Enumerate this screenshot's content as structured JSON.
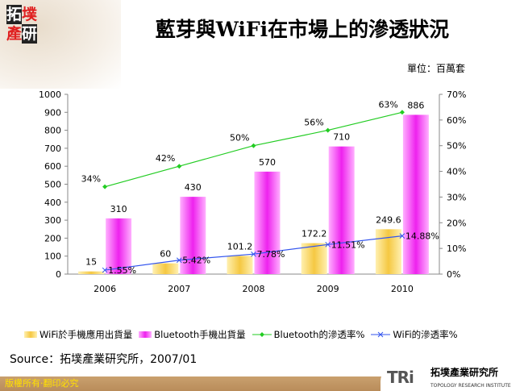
{
  "logo": {
    "chars": [
      "拓",
      "墣",
      "產",
      "研"
    ]
  },
  "title": "藍芽與WiFi在市場上的滲透狀況",
  "unit": "單位：百萬套",
  "chart_data": {
    "type": "bar+line",
    "categories": [
      "2006",
      "2007",
      "2008",
      "2009",
      "2010"
    ],
    "left_axis": {
      "range": [
        0,
        1000
      ],
      "ticks": [
        0,
        100,
        200,
        300,
        400,
        500,
        600,
        700,
        800,
        900,
        1000
      ]
    },
    "right_axis": {
      "range": [
        0,
        70
      ],
      "ticks": [
        "0%",
        "10%",
        "20%",
        "30%",
        "40%",
        "50%",
        "60%",
        "70%"
      ]
    },
    "series": [
      {
        "name": "WiFi於手機應用出貨量",
        "type": "bar",
        "axis": "left",
        "color": "#f5c842",
        "values": [
          15,
          60,
          101.2,
          172.2,
          249.6
        ],
        "labels": [
          "15",
          "60",
          "101.2",
          "172.2",
          "249.6"
        ]
      },
      {
        "name": "Bluetooth手機出貨量",
        "type": "bar",
        "axis": "left",
        "color": "#ee22ee",
        "values": [
          310,
          430,
          570,
          710,
          886
        ],
        "labels": [
          "310",
          "430",
          "570",
          "710",
          "886"
        ]
      },
      {
        "name": "Bluetooth的滲透率%",
        "type": "line",
        "axis": "right",
        "color": "#22cc22",
        "values": [
          34,
          42,
          50,
          56,
          63
        ],
        "labels": [
          "34%",
          "42%",
          "50%",
          "56%",
          "63%"
        ]
      },
      {
        "name": "WiFi的滲透率%",
        "type": "line",
        "axis": "right",
        "color": "#3355ee",
        "values": [
          1.55,
          5.42,
          7.78,
          11.51,
          14.88
        ],
        "labels": [
          "1.55%",
          "5.42%",
          "7.78%",
          "11.51%",
          "14.88%"
        ]
      }
    ],
    "legend": "bottom"
  },
  "source": "Source：拓墣產業研究所，2007/01",
  "footer": {
    "copyright": "版權所有‧翻印必究",
    "brand": "TRi",
    "brand_cn": "拓墣產業研究所",
    "brand_en": "TOPOLOGY RESEARCH INSTITUTE"
  }
}
